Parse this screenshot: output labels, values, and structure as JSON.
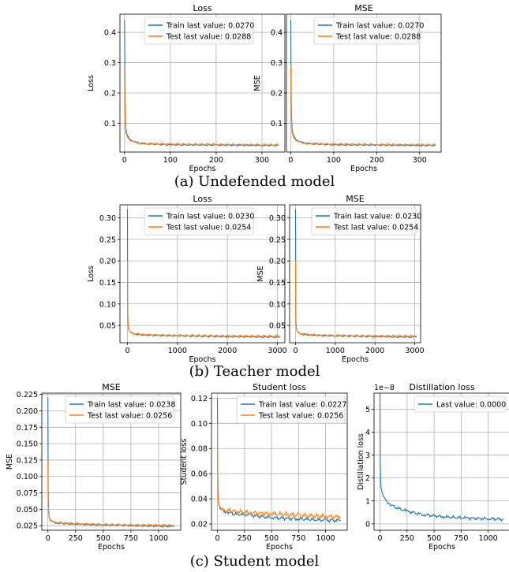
{
  "captions": {
    "a": "(a) Undefended model",
    "b": "(b) Teacher model",
    "c": "(c) Student model"
  },
  "colors": {
    "train": "#1f77b4",
    "test": "#ff7f0e",
    "grid": "#b0b0b0"
  },
  "chart_data": [
    {
      "type": "line",
      "title": "Loss",
      "xlabel": "Epochs",
      "ylabel": "Loss",
      "xlim": [
        -10,
        350
      ],
      "ylim": [
        0.005,
        0.46
      ],
      "xticks": [
        0,
        100,
        200,
        300
      ],
      "yticks": [
        0.1,
        0.2,
        0.3,
        0.4
      ],
      "yticklabels": [
        "0.1",
        "0.2",
        "0.3",
        "0.4"
      ],
      "legend_position": "top-right",
      "grid": true,
      "series": [
        {
          "name": "Train last value: 0.0270",
          "x": [
            0,
            1,
            2,
            3,
            5,
            8,
            12,
            20,
            30,
            50,
            100,
            200,
            300,
            337
          ],
          "y": [
            0.44,
            0.2,
            0.12,
            0.085,
            0.065,
            0.055,
            0.047,
            0.04,
            0.035,
            0.032,
            0.029,
            0.028,
            0.027,
            0.027
          ]
        },
        {
          "name": "Test last value: 0.0288",
          "x": [
            0,
            1,
            2,
            3,
            5,
            8,
            12,
            20,
            30,
            50,
            100,
            200,
            300,
            337
          ],
          "y": [
            0.29,
            0.14,
            0.095,
            0.07,
            0.058,
            0.05,
            0.044,
            0.038,
            0.035,
            0.033,
            0.031,
            0.03,
            0.029,
            0.0288
          ]
        }
      ]
    },
    {
      "type": "line",
      "title": "MSE",
      "xlabel": "Epochs",
      "ylabel": "MSE",
      "xlim": [
        -10,
        350
      ],
      "ylim": [
        0.005,
        0.46
      ],
      "xticks": [
        0,
        100,
        200,
        300
      ],
      "yticks": [
        0.1,
        0.2,
        0.3,
        0.4
      ],
      "yticklabels": [
        "0.1",
        "0.2",
        "0.3",
        "0.4"
      ],
      "legend_position": "top-right",
      "grid": true,
      "series": [
        {
          "name": "Train last value: 0.0270",
          "x": [
            0,
            1,
            2,
            3,
            5,
            8,
            12,
            20,
            30,
            50,
            100,
            200,
            300,
            337
          ],
          "y": [
            0.44,
            0.2,
            0.12,
            0.085,
            0.065,
            0.055,
            0.047,
            0.04,
            0.035,
            0.032,
            0.029,
            0.028,
            0.027,
            0.027
          ]
        },
        {
          "name": "Test last value: 0.0288",
          "x": [
            0,
            1,
            2,
            3,
            5,
            8,
            12,
            20,
            30,
            50,
            100,
            200,
            300,
            337
          ],
          "y": [
            0.29,
            0.14,
            0.095,
            0.07,
            0.058,
            0.05,
            0.044,
            0.038,
            0.035,
            0.033,
            0.031,
            0.03,
            0.029,
            0.0288
          ]
        }
      ]
    },
    {
      "type": "line",
      "title": "Loss",
      "xlabel": "Epochs",
      "ylabel": "Loss",
      "xlim": [
        -150,
        3150
      ],
      "ylim": [
        0.01,
        0.33
      ],
      "xticks": [
        0,
        1000,
        2000,
        3000
      ],
      "yticks": [
        0.05,
        0.1,
        0.15,
        0.2,
        0.25,
        0.3
      ],
      "yticklabels": [
        "0.05",
        "0.10",
        "0.15",
        "0.20",
        "0.25",
        "0.30"
      ],
      "legend_position": "top-right",
      "grid": true,
      "series": [
        {
          "name": "Train last value: 0.0230",
          "x": [
            0,
            5,
            10,
            20,
            40,
            80,
            150,
            300,
            600,
            1000,
            2000,
            3000,
            3050
          ],
          "y": [
            0.32,
            0.1,
            0.06,
            0.045,
            0.038,
            0.033,
            0.03,
            0.028,
            0.027,
            0.026,
            0.024,
            0.023,
            0.023
          ]
        },
        {
          "name": "Test last value: 0.0254",
          "x": [
            0,
            5,
            10,
            20,
            40,
            80,
            150,
            300,
            600,
            1000,
            2000,
            3000,
            3050
          ],
          "y": [
            0.2,
            0.08,
            0.052,
            0.042,
            0.036,
            0.033,
            0.031,
            0.029,
            0.028,
            0.027,
            0.026,
            0.0254,
            0.0254
          ]
        }
      ]
    },
    {
      "type": "line",
      "title": "MSE",
      "xlabel": "Epochs",
      "ylabel": "MSE",
      "xlim": [
        -150,
        3150
      ],
      "ylim": [
        0.01,
        0.33
      ],
      "xticks": [
        0,
        1000,
        2000,
        3000
      ],
      "yticks": [
        0.05,
        0.1,
        0.15,
        0.2,
        0.25,
        0.3
      ],
      "yticklabels": [
        "0.05",
        "0.10",
        "0.15",
        "0.20",
        "0.25",
        "0.30"
      ],
      "legend_position": "top-right",
      "grid": true,
      "series": [
        {
          "name": "Train last value: 0.0230",
          "x": [
            0,
            5,
            10,
            20,
            40,
            80,
            150,
            300,
            600,
            1000,
            2000,
            3000,
            3050
          ],
          "y": [
            0.32,
            0.1,
            0.06,
            0.045,
            0.038,
            0.033,
            0.03,
            0.028,
            0.027,
            0.026,
            0.024,
            0.023,
            0.023
          ]
        },
        {
          "name": "Test last value: 0.0254",
          "x": [
            0,
            5,
            10,
            20,
            40,
            80,
            150,
            300,
            600,
            1000,
            2000,
            3000,
            3050
          ],
          "y": [
            0.2,
            0.08,
            0.052,
            0.042,
            0.036,
            0.033,
            0.031,
            0.029,
            0.028,
            0.027,
            0.026,
            0.0254,
            0.0254
          ]
        }
      ]
    },
    {
      "type": "line",
      "title": "MSE",
      "xlabel": "Epochs",
      "ylabel": "MSE",
      "xlim": [
        -55,
        1200
      ],
      "ylim": [
        0.018,
        0.227
      ],
      "xticks": [
        0,
        250,
        500,
        750,
        1000
      ],
      "yticks": [
        0.025,
        0.05,
        0.075,
        0.1,
        0.125,
        0.15,
        0.175,
        0.2,
        0.225
      ],
      "yticklabels": [
        "0.025",
        "0.050",
        "0.075",
        "0.100",
        "0.125",
        "0.150",
        "0.175",
        "0.200",
        "0.225"
      ],
      "legend_position": "top-right",
      "grid": true,
      "series": [
        {
          "name": "Train last value: 0.0238",
          "x": [
            0,
            3,
            6,
            10,
            20,
            40,
            80,
            150,
            300,
            500,
            750,
            1000,
            1140
          ],
          "y": [
            0.22,
            0.08,
            0.05,
            0.04,
            0.034,
            0.031,
            0.029,
            0.028,
            0.027,
            0.026,
            0.025,
            0.024,
            0.0238
          ]
        },
        {
          "name": "Test last value: 0.0256",
          "x": [
            0,
            3,
            6,
            10,
            20,
            40,
            80,
            150,
            300,
            500,
            750,
            1000,
            1140
          ],
          "y": [
            0.125,
            0.06,
            0.045,
            0.038,
            0.034,
            0.032,
            0.03,
            0.029,
            0.028,
            0.027,
            0.026,
            0.026,
            0.0256
          ]
        }
      ]
    },
    {
      "type": "line",
      "title": "Student loss",
      "xlabel": "Epochs",
      "ylabel": "Student loss",
      "xlim": [
        -55,
        1200
      ],
      "ylim": [
        0.015,
        0.124
      ],
      "xticks": [
        0,
        250,
        500,
        750,
        1000
      ],
      "yticks": [
        0.02,
        0.04,
        0.06,
        0.08,
        0.1,
        0.12
      ],
      "yticklabels": [
        "0.02",
        "0.04",
        "0.06",
        "0.08",
        "0.10",
        "0.12"
      ],
      "legend_position": "top-right",
      "grid": true,
      "series": [
        {
          "name": "Train last value: 0.0227",
          "x": [
            0,
            3,
            6,
            10,
            20,
            40,
            80,
            150,
            300,
            500,
            750,
            1000,
            1140
          ],
          "y": [
            0.12,
            0.06,
            0.045,
            0.038,
            0.034,
            0.031,
            0.03,
            0.028,
            0.027,
            0.025,
            0.024,
            0.023,
            0.0227
          ]
        },
        {
          "name": "Test last value: 0.0256",
          "x": [
            0,
            3,
            6,
            10,
            20,
            40,
            80,
            150,
            300,
            500,
            750,
            1000,
            1140
          ],
          "y": [
            0.1,
            0.05,
            0.04,
            0.036,
            0.033,
            0.032,
            0.031,
            0.03,
            0.029,
            0.028,
            0.027,
            0.026,
            0.0256
          ]
        }
      ]
    },
    {
      "type": "line",
      "title": "Distillation loss",
      "xlabel": "Epochs",
      "ylabel": "Distillation loss",
      "scale_label": "1e−8",
      "xlim": [
        -55,
        1200
      ],
      "ylim": [
        -0.28,
        5.7
      ],
      "xticks": [
        0,
        250,
        500,
        750,
        1000
      ],
      "yticks": [
        0,
        1,
        2,
        3,
        4,
        5
      ],
      "yticklabels": [
        "0",
        "1",
        "2",
        "3",
        "4",
        "5"
      ],
      "legend_position": "top-right",
      "grid": true,
      "series": [
        {
          "name": "Last value: 0.0000",
          "x": [
            0,
            3,
            6,
            10,
            20,
            40,
            80,
            150,
            250,
            400,
            600,
            800,
            1000,
            1140
          ],
          "y": [
            5.7,
            2.5,
            1.8,
            1.6,
            1.4,
            1.1,
            0.9,
            0.7,
            0.55,
            0.4,
            0.3,
            0.25,
            0.22,
            0.2
          ]
        }
      ]
    }
  ]
}
